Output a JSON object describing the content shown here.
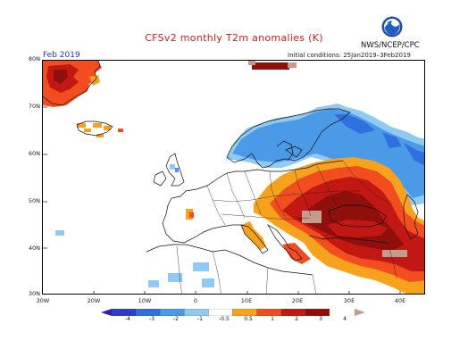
{
  "title": "CFSv2 monthly T2m anomalies (K)",
  "agency": "NWS/NCEP/CPC",
  "logo_name": "noaa-logo",
  "initial_conditions": "Initial conditions: 25Jan2019–3Feb2019",
  "month_label": "Feb 2019",
  "lat_labels": [
    "80N",
    "70N",
    "60N",
    "50N",
    "40N",
    "30N"
  ],
  "lon_labels": [
    "30W",
    "20W",
    "10W",
    "0",
    "10E",
    "20E",
    "30E",
    "40E"
  ],
  "colorbar": {
    "labels": [
      "-4",
      "-3",
      "-2",
      "-1",
      "-0.5",
      "0.5",
      "1",
      "2",
      "3",
      "4"
    ],
    "colors": {
      "below_-4": "#3a17b8",
      "-4_-3": "#2c3ec9",
      "-3_-2": "#2f6fde",
      "-2_-1": "#4b9ae8",
      "-1_-0.5": "#90c9f2",
      "-0.5_0.5": "#ffffff",
      "0.5_1": "#f7a21c",
      "1_2": "#f24d1f",
      "2_3": "#c21712",
      "3_4": "#8e0f0b",
      "above_4": "#c79a8c"
    }
  },
  "map_extent": {
    "lon": [
      -30,
      45
    ],
    "lat": [
      30,
      80
    ]
  }
}
